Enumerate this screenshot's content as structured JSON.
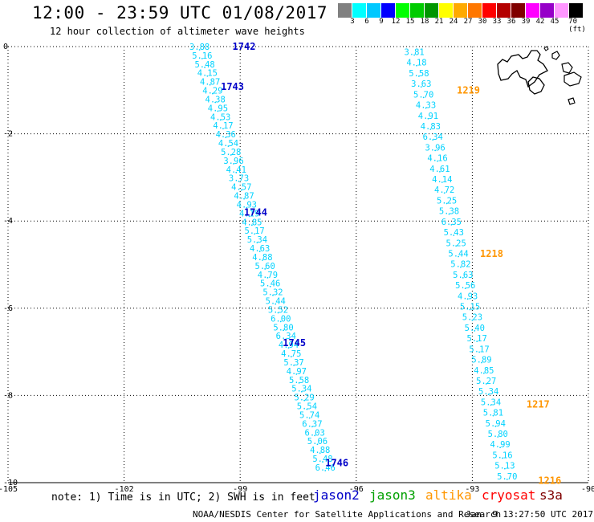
{
  "header": {
    "title": "12:00 - 23:59 UTC 01/08/2017",
    "subtitle": "12 hour collection of altimeter wave heights"
  },
  "scale": {
    "colors": [
      "#808080",
      "#00ffff",
      "#00c8ff",
      "#0000ff",
      "#00ff00",
      "#00cc00",
      "#009600",
      "#ffff00",
      "#ffaa00",
      "#ff7700",
      "#ff0000",
      "#b40000",
      "#800000",
      "#ff00ff",
      "#9600c8",
      "#ff96ff",
      "#000000"
    ],
    "labels": [
      "3",
      "6",
      "9",
      "12",
      "15",
      "18",
      "21",
      "24",
      "27",
      "30",
      "33",
      "36",
      "39",
      "42",
      "45",
      "70 (ft)"
    ]
  },
  "axes": {
    "x_ticks": [
      "-105",
      "-102",
      "-99",
      "-96",
      "-93",
      "-90"
    ],
    "y_ticks": [
      "0",
      "-2",
      "-4",
      "-6",
      "-8",
      "-10"
    ],
    "xlim": [
      -105,
      -90
    ],
    "ylim": [
      -10,
      0
    ]
  },
  "tracks": [
    {
      "name": "jason2",
      "color": "#00d2ff",
      "start": {
        "lon": -100.05,
        "lat": 0.0
      },
      "end": {
        "lon": -96.8,
        "lat": -9.65
      },
      "values": [
        "3.88",
        "5.16",
        "5.48",
        "4.15",
        "4.87",
        "4.29",
        "4.38",
        "4.95",
        "4.53",
        "4.17",
        "4.36",
        "4.54",
        "5.28",
        "3.96",
        "4.41",
        "3.73",
        "4.57",
        "4.87",
        "4.93",
        "4.19",
        "4.85",
        "5.17",
        "5.34",
        "4.63",
        "4.88",
        "5.60",
        "4.79",
        "5.46",
        "5.32",
        "5.44",
        "5.52",
        "6.00",
        "5.80",
        "6.34",
        "4.94",
        "4.75",
        "5.37",
        "4.97",
        "5.58",
        "5.34",
        "5.29",
        "5.54",
        "5.74",
        "6.37",
        "6.03",
        "5.06",
        "4.88",
        "5.48",
        "6.46"
      ],
      "time_labels": [
        {
          "text": "1742",
          "lon": -99.2,
          "lat": 0.0
        },
        {
          "text": "1743",
          "lon": -99.5,
          "lat": -0.92
        },
        {
          "text": "1744",
          "lon": -98.9,
          "lat": -3.8
        },
        {
          "text": "1745",
          "lon": -97.9,
          "lat": -6.8
        },
        {
          "text": "1746",
          "lon": -96.8,
          "lat": -9.55
        }
      ],
      "time_color": "#0000c8"
    },
    {
      "name": "altika",
      "color": "#00d2ff",
      "start": {
        "lon": -94.5,
        "lat": -0.12
      },
      "end": {
        "lon": -92.1,
        "lat": -9.85
      },
      "values": [
        "3.81",
        "4.18",
        "5.58",
        "3.63",
        "5.70",
        "4.33",
        "4.91",
        "4.83",
        "6.34",
        "3.96",
        "4.16",
        "4.61",
        "4.14",
        "4.72",
        "5.25",
        "5.38",
        "6.35",
        "5.43",
        "5.25",
        "5.44",
        "5.82",
        "5.63",
        "5.56",
        "4.93",
        "5.15",
        "5.23",
        "5.40",
        "5.17",
        "5.17",
        "5.89",
        "4.85",
        "5.27",
        "5.34",
        "5.34",
        "5.81",
        "5.94",
        "5.80",
        "4.99",
        "5.16",
        "5.13",
        "5.70"
      ],
      "time_labels": [
        {
          "text": "1219",
          "lon": -93.4,
          "lat": -1.0
        },
        {
          "text": "1218",
          "lon": -92.8,
          "lat": -4.75
        },
        {
          "text": "1217",
          "lon": -91.6,
          "lat": -8.2
        },
        {
          "text": "1216",
          "lon": -91.3,
          "lat": -9.95
        }
      ],
      "time_color": "#ff9600"
    }
  ],
  "footer": {
    "note": "note: 1) Time is in UTC; 2) SWH is in feet",
    "missions": [
      {
        "name": "jason2",
        "color": "#0000c8"
      },
      {
        "name": "jason3",
        "color": "#00a000"
      },
      {
        "name": "altika",
        "color": "#ff9600"
      },
      {
        "name": "cryosat",
        "color": "#ff0000"
      },
      {
        "name": "s3a",
        "color": "#800000"
      }
    ],
    "credit": "NOAA/NESDIS Center for Satellite Applications and Research",
    "timestamp": "Jan  9 13:27:50 UTC 2017"
  }
}
